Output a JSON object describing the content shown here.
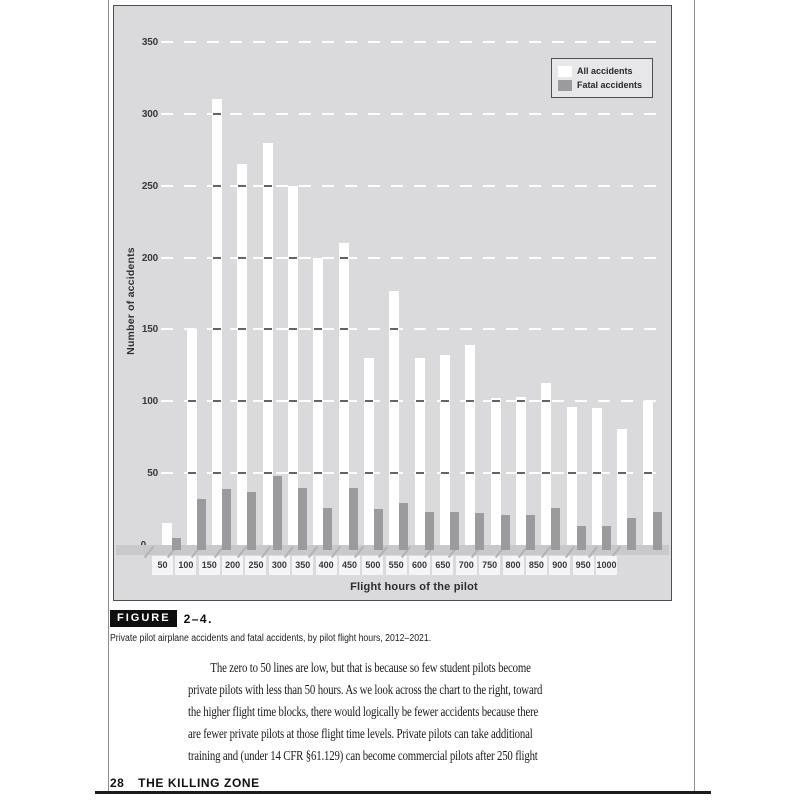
{
  "page": {
    "caption": {
      "badge": "FIGURE",
      "number": "2–4.",
      "text": "Private pilot airplane accidents and fatal accidents, by pilot flight hours, 2012–2021."
    },
    "body_lines": [
      "The zero to 50 lines are low, but that is because so few student pilots become",
      "private pilots with less than 50 hours. As we look across the chart to the right, toward",
      "the higher flight time blocks, there would logically be fewer accidents because there",
      "are fewer private pilots at those flight time levels. Private pilots can take additional",
      "training and (under 14 CFR §61.129) can become commercial pilots after 250 flight"
    ],
    "footer": {
      "page_number": "28",
      "book_title": "THE KILLING ZONE"
    }
  },
  "chart_data": {
    "type": "bar",
    "title": "",
    "xlabel": "Flight hours of the pilot",
    "ylabel": "Number of accidents",
    "categories": [
      50,
      100,
      150,
      200,
      250,
      300,
      350,
      400,
      450,
      500,
      550,
      600,
      650,
      700,
      750,
      800,
      850,
      900,
      950,
      1000
    ],
    "series": [
      {
        "name": "All accidents",
        "color": "#ffffff",
        "values": [
          15,
          150,
          310,
          265,
          280,
          250,
          200,
          210,
          130,
          177,
          130,
          132,
          139,
          102,
          103,
          113,
          96,
          95,
          81,
          100
        ]
      },
      {
        "name": "Fatal accidents",
        "color": "#9b9b9d",
        "values": [
          5,
          32,
          39,
          37,
          48,
          40,
          26,
          40,
          25,
          29,
          23,
          23,
          22,
          21,
          21,
          26,
          13,
          13,
          19,
          23
        ]
      }
    ],
    "ylim": [
      0,
      375
    ],
    "yticks": [
      0,
      50,
      100,
      150,
      200,
      250,
      300,
      350
    ],
    "grid": "horizontal-dashed-white",
    "legend_position": "top-right",
    "plot_bg": "#dadadc"
  },
  "colors": {
    "chart_background": "#dadadc",
    "bar_all": "#ffffff",
    "bar_fatal": "#9b9b9d",
    "gridline": "#fdfdfd",
    "baseline_band": "#c9c9cb",
    "tick_label_box": "#f5f5f7",
    "chart_border": "#4f4f52",
    "badge_background": "#0e0e0e",
    "footer_rule": "#1b1b1d"
  }
}
